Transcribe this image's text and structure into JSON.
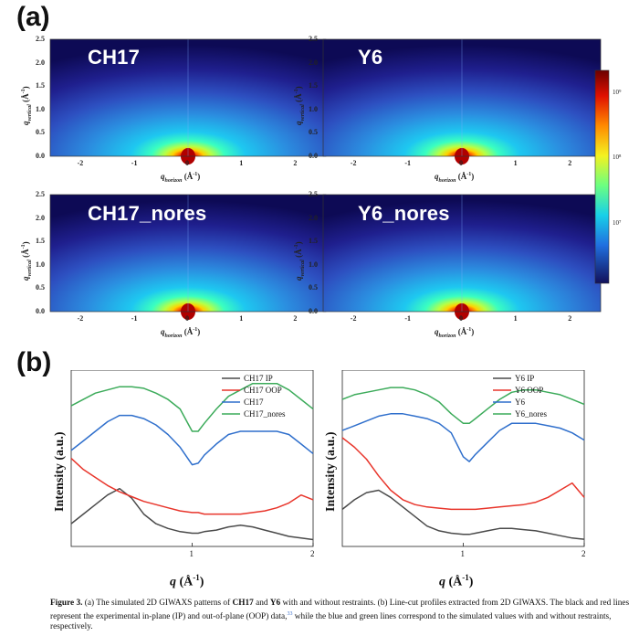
{
  "panel_a_label": "(a)",
  "panel_b_label": "(b)",
  "heatmaps": [
    {
      "title": "CH17"
    },
    {
      "title": "Y6"
    },
    {
      "title": "CH17_nores"
    },
    {
      "title": "Y6_nores"
    }
  ],
  "heatmap_axes": {
    "y_ticks": [
      "2.5",
      "2.0",
      "1.5",
      "1.0",
      "0.5",
      "0.0"
    ],
    "x_ticks": [
      "-2",
      "-1",
      "0",
      "1",
      "2"
    ],
    "xlabel_main": "q",
    "xlabel_sub": "horizon",
    "xlabel_unit": " (Å",
    "xlabel_exp": "-1",
    "xlabel_close": ")",
    "ylabel_main": "q",
    "ylabel_sub": "vertical",
    "ylabel_unit": " (Å",
    "ylabel_exp": "-1",
    "ylabel_close": ")"
  },
  "colorbar": {
    "ticks": [
      "10⁹",
      "10⁸",
      "10⁷"
    ]
  },
  "chart_data": [
    {
      "type": "line",
      "title": "",
      "xlabel": "q (Å-1)",
      "ylabel": "Intensity (a.u.)",
      "xlim": [
        0,
        2
      ],
      "x_ticks": [
        "1",
        "2"
      ],
      "x": [
        0,
        0.1,
        0.2,
        0.3,
        0.4,
        0.5,
        0.6,
        0.7,
        0.8,
        0.9,
        1.0,
        1.05,
        1.1,
        1.2,
        1.3,
        1.4,
        1.5,
        1.6,
        1.7,
        1.8,
        1.9,
        2.0
      ],
      "series": [
        {
          "name": "CH17 IP",
          "color": "#4a4a4a",
          "values": [
            12,
            18,
            24,
            30,
            34,
            28,
            18,
            12,
            9,
            7,
            6,
            6,
            7,
            8,
            10,
            11,
            10,
            8,
            6,
            4,
            3,
            2
          ]
        },
        {
          "name": "CH17 OOP",
          "color": "#e8352b",
          "values": [
            53,
            46,
            41,
            36,
            32,
            29,
            26,
            24,
            22,
            20,
            19,
            19,
            18,
            18,
            18,
            18,
            19,
            20,
            22,
            25,
            30,
            27
          ]
        },
        {
          "name": "CH17",
          "color": "#2f6fcc",
          "values": [
            58,
            64,
            70,
            76,
            80,
            80,
            78,
            74,
            68,
            60,
            49,
            50,
            55,
            62,
            68,
            70,
            70,
            70,
            70,
            68,
            62,
            56
          ]
        },
        {
          "name": "CH17_nores",
          "color": "#3cab5a",
          "values": [
            86,
            90,
            94,
            96,
            98,
            98,
            97,
            94,
            90,
            84,
            70,
            70,
            75,
            84,
            92,
            96,
            100,
            100,
            100,
            96,
            90,
            84
          ]
        }
      ]
    },
    {
      "type": "line",
      "title": "",
      "xlabel": "q (Å-1)",
      "ylabel": "Intensity (a.u.)",
      "xlim": [
        0,
        2
      ],
      "x_ticks": [
        "1",
        "2"
      ],
      "x": [
        0,
        0.1,
        0.2,
        0.3,
        0.4,
        0.5,
        0.6,
        0.7,
        0.8,
        0.9,
        1.0,
        1.05,
        1.1,
        1.2,
        1.3,
        1.4,
        1.5,
        1.6,
        1.7,
        1.8,
        1.9,
        2.0
      ],
      "series": [
        {
          "name": "Y6 IP",
          "color": "#4a4a4a",
          "values": [
            28,
            36,
            42,
            44,
            38,
            30,
            22,
            14,
            10,
            8,
            7,
            7,
            8,
            10,
            12,
            12,
            11,
            10,
            8,
            6,
            4,
            3
          ]
        },
        {
          "name": "Y6 OOP",
          "color": "#e8352b",
          "values": [
            88,
            80,
            70,
            56,
            44,
            36,
            32,
            30,
            29,
            28,
            28,
            28,
            28,
            29,
            30,
            31,
            32,
            34,
            38,
            44,
            50,
            38
          ]
        },
        {
          "name": "Y6",
          "color": "#2f6fcc",
          "values": [
            94,
            98,
            102,
            106,
            108,
            108,
            106,
            104,
            100,
            92,
            72,
            68,
            74,
            84,
            94,
            100,
            100,
            100,
            98,
            96,
            92,
            86
          ]
        },
        {
          "name": "Y6_nores",
          "color": "#3cab5a",
          "values": [
            120,
            124,
            126,
            128,
            130,
            130,
            128,
            124,
            118,
            108,
            100,
            100,
            104,
            112,
            120,
            126,
            128,
            128,
            126,
            124,
            120,
            116
          ]
        }
      ]
    }
  ],
  "lineplot_labels": {
    "ylabel": "Intensity (a.u.)",
    "xlabel_main": "q",
    "xlabel_unit": " (Å",
    "xlabel_exp": "-1",
    "xlabel_close": ")"
  },
  "caption": {
    "fig": "Figure 3.",
    "t1": " (a) The simulated 2D GIWAXS patterns of ",
    "b1": "CH17",
    "t2": " and ",
    "b2": "Y6",
    "t3": " with and without restraints. (b) Line-cut profiles extracted from 2D GIWAXS. The black and red lines represent the experimental in-plane (IP) and out-of-plane (OOP) data,",
    "ref": "33",
    "t4": " while the blue and green lines correspond to the simulated values with and without restraints, respectively."
  }
}
